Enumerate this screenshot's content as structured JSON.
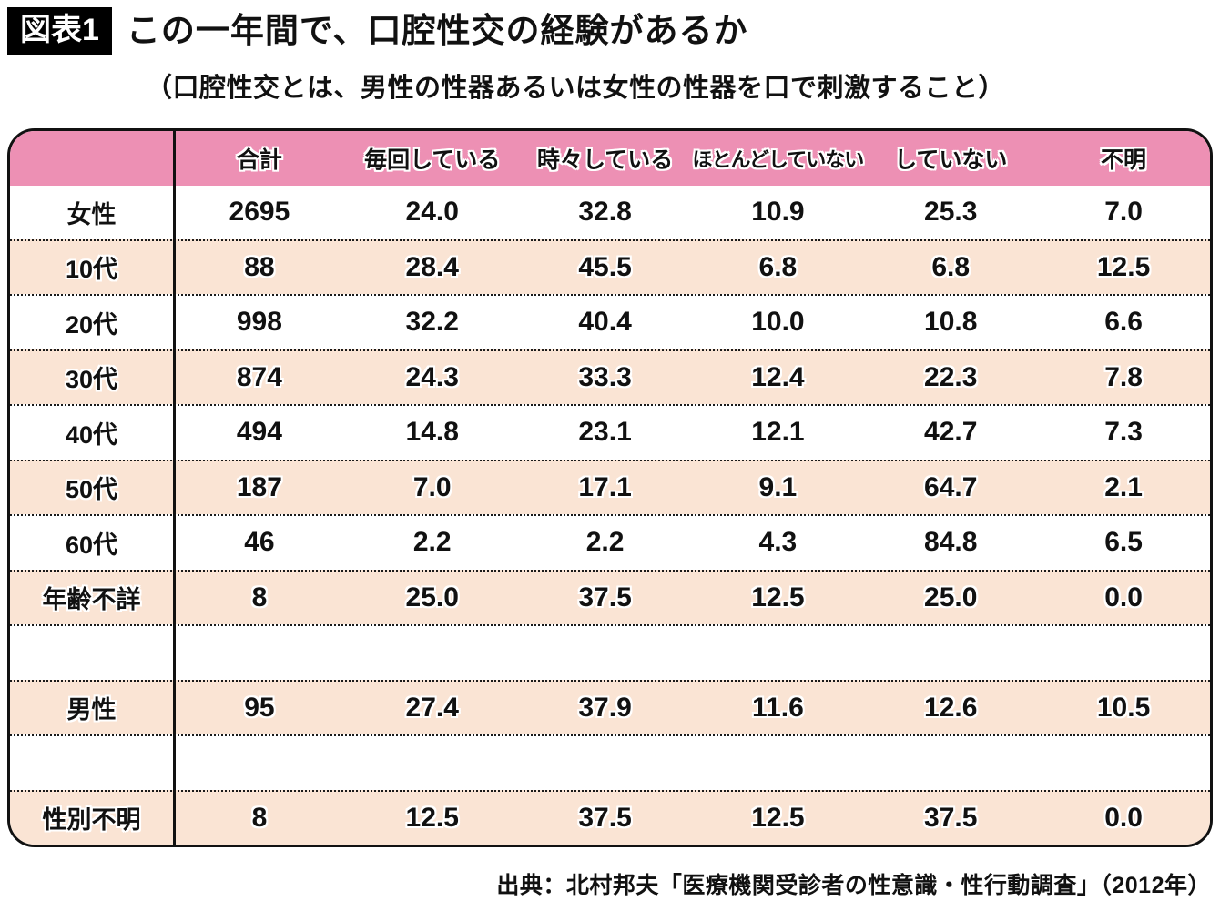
{
  "figure_label": "図表1",
  "title": "この一年間で、口腔性交の経験があるか",
  "subtitle": "（口腔性交とは、男性の性器あるいは女性の性器を口で刺激すること）",
  "source": "出典：北村邦夫「医療機関受診者の性意識・性行動調査」（2012年）",
  "colors": {
    "header_pink": "#ed90b4",
    "row_peach": "#fae4d4",
    "ink": "#111111"
  },
  "chart_data": {
    "type": "table",
    "title": "この一年間で、口腔性交の経験があるか",
    "columns": [
      "",
      "合計",
      "毎回している",
      "時々している",
      "ほとんどしていない",
      "していない",
      "不明"
    ],
    "rows": [
      {
        "label": "女性",
        "values": [
          "2695",
          "24.0",
          "32.8",
          "10.9",
          "25.3",
          "7.0"
        ]
      },
      {
        "label": "10代",
        "values": [
          "88",
          "28.4",
          "45.5",
          "6.8",
          "6.8",
          "12.5"
        ]
      },
      {
        "label": "20代",
        "values": [
          "998",
          "32.2",
          "40.4",
          "10.0",
          "10.8",
          "6.6"
        ]
      },
      {
        "label": "30代",
        "values": [
          "874",
          "24.3",
          "33.3",
          "12.4",
          "22.3",
          "7.8"
        ]
      },
      {
        "label": "40代",
        "values": [
          "494",
          "14.8",
          "23.1",
          "12.1",
          "42.7",
          "7.3"
        ]
      },
      {
        "label": "50代",
        "values": [
          "187",
          "7.0",
          "17.1",
          "9.1",
          "64.7",
          "2.1"
        ]
      },
      {
        "label": "60代",
        "values": [
          "46",
          "2.2",
          "2.2",
          "4.3",
          "84.8",
          "6.5"
        ]
      },
      {
        "label": "年齢不詳",
        "values": [
          "8",
          "25.0",
          "37.5",
          "12.5",
          "25.0",
          "0.0"
        ]
      },
      {
        "label": "",
        "values": [
          "",
          "",
          "",
          "",
          "",
          ""
        ]
      },
      {
        "label": "男性",
        "values": [
          "95",
          "27.4",
          "37.9",
          "11.6",
          "12.6",
          "10.5"
        ]
      },
      {
        "label": "",
        "values": [
          "",
          "",
          "",
          "",
          "",
          ""
        ]
      },
      {
        "label": "性別不明",
        "values": [
          "8",
          "12.5",
          "37.5",
          "12.5",
          "37.5",
          "0.0"
        ]
      }
    ]
  }
}
